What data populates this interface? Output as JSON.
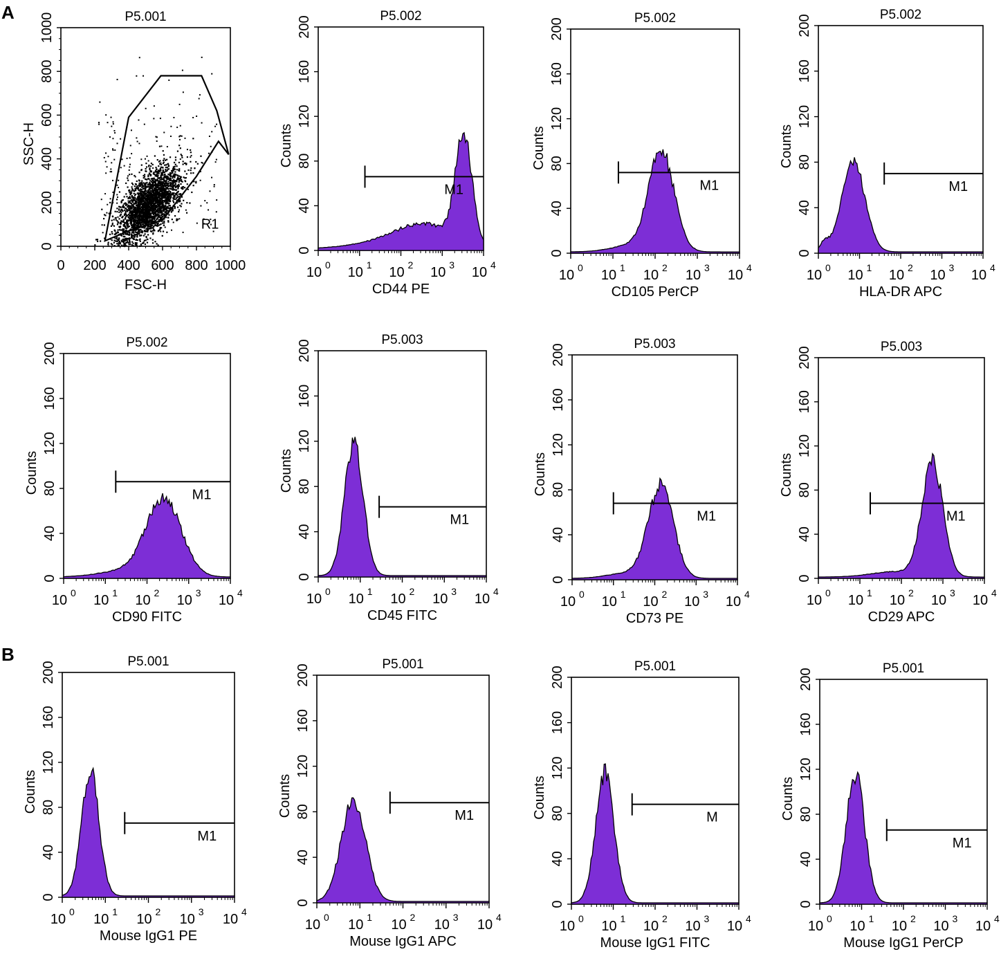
{
  "figure": {
    "panel_labels": [
      "A",
      "B"
    ],
    "hist_fill_color": "#7d2ed6",
    "hist_edge_color": "#000000"
  },
  "chart_data": [
    {
      "id": "scatter",
      "type": "scatter",
      "panel": "A",
      "title": "P5.001",
      "xlabel": "FSC-H",
      "ylabel": "SSC-H",
      "xlim": [
        0,
        1000
      ],
      "ylim": [
        0,
        1000
      ],
      "xticks": [
        "0",
        "200",
        "400",
        "600",
        "800",
        "1000"
      ],
      "yticks": [
        "0",
        "200",
        "400",
        "600",
        "800",
        "1000"
      ],
      "gate": {
        "name": "R1",
        "polygon": [
          [
            260,
            25
          ],
          [
            400,
            70
          ],
          [
            600,
            120
          ],
          [
            800,
            320
          ],
          [
            930,
            480
          ],
          [
            990,
            420
          ],
          [
            920,
            620
          ],
          [
            830,
            780
          ],
          [
            590,
            780
          ],
          [
            400,
            590
          ]
        ]
      },
      "cloud": {
        "center": [
          520,
          190
        ],
        "sd": [
          95,
          70
        ],
        "n_dense": 2600,
        "n_sparse": 200,
        "x_min": 200
      }
    },
    {
      "id": "cd44",
      "type": "histogram",
      "panel": "A",
      "title": "P5.002",
      "xlabel": "CD44 PE",
      "ylabel": "Counts",
      "xlim_log": [
        0,
        4
      ],
      "ylim": [
        0,
        200
      ],
      "yticks": [
        "0",
        "40",
        "80",
        "120",
        "160",
        "200"
      ],
      "xticks": [
        "0",
        "1",
        "2",
        "3",
        "4"
      ],
      "marker": {
        "label": "M1",
        "from_log": 1.13,
        "to_log": 4.0,
        "y": 66
      },
      "peaks": [
        {
          "mu": 3.52,
          "sigma": 0.2,
          "amp": 96
        },
        {
          "mu": 2.6,
          "sigma": 0.7,
          "amp": 20
        },
        {
          "mu": 1.6,
          "sigma": 0.9,
          "amp": 5
        }
      ]
    },
    {
      "id": "cd105",
      "type": "histogram",
      "panel": "A",
      "title": "P5.002",
      "xlabel": "CD105 PerCP",
      "ylabel": "Counts",
      "xlim_log": [
        0,
        4
      ],
      "ylim": [
        0,
        200
      ],
      "yticks": [
        "0",
        "40",
        "80",
        "120",
        "160",
        "200"
      ],
      "xticks": [
        "0",
        "1",
        "2",
        "3",
        "4"
      ],
      "marker": {
        "label": "M1",
        "from_log": 1.13,
        "to_log": 4.0,
        "y": 72
      },
      "peaks": [
        {
          "mu": 2.15,
          "sigma": 0.3,
          "amp": 88
        },
        {
          "mu": 1.5,
          "sigma": 0.5,
          "amp": 6
        }
      ]
    },
    {
      "id": "hladr",
      "type": "histogram",
      "panel": "A",
      "title": "P5.002",
      "xlabel": "HLA-DR APC",
      "ylabel": "Counts",
      "xlim_log": [
        0,
        4
      ],
      "ylim": [
        0,
        200
      ],
      "yticks": [
        "0",
        "40",
        "80",
        "120",
        "160",
        "200"
      ],
      "xticks": [
        "0",
        "1",
        "2",
        "3",
        "4"
      ],
      "marker": {
        "label": "M1",
        "from_log": 1.6,
        "to_log": 4.0,
        "y": 70
      },
      "peaks": [
        {
          "mu": 0.85,
          "sigma": 0.28,
          "amp": 80
        },
        {
          "mu": 0.15,
          "sigma": 0.1,
          "amp": 8
        }
      ]
    },
    {
      "id": "cd90",
      "type": "histogram",
      "panel": "A",
      "title": "P5.002",
      "xlabel": "CD90 FITC",
      "ylabel": "Counts",
      "xlim_log": [
        0,
        4
      ],
      "ylim": [
        0,
        200
      ],
      "yticks": [
        "0",
        "40",
        "80",
        "120",
        "160",
        "200"
      ],
      "xticks": [
        "0",
        "1",
        "2",
        "3",
        "4"
      ],
      "marker": {
        "label": "M1",
        "from_log": 1.25,
        "to_log": 4.0,
        "y": 86
      },
      "peaks": [
        {
          "mu": 2.4,
          "sigma": 0.42,
          "amp": 70
        },
        {
          "mu": 1.4,
          "sigma": 0.6,
          "amp": 5
        }
      ]
    },
    {
      "id": "cd45",
      "type": "histogram",
      "panel": "A",
      "title": "P5.003",
      "xlabel": "CD45 FITC",
      "ylabel": "Counts",
      "xlim_log": [
        0,
        4
      ],
      "ylim": [
        0,
        200
      ],
      "yticks": [
        "0",
        "40",
        "80",
        "120",
        "160",
        "200"
      ],
      "xticks": [
        "0",
        "1",
        "2",
        "3",
        "4"
      ],
      "marker": {
        "label": "M1",
        "from_log": 1.45,
        "to_log": 4.0,
        "y": 62
      },
      "peaks": [
        {
          "mu": 0.85,
          "sigma": 0.22,
          "amp": 120
        }
      ]
    },
    {
      "id": "cd73",
      "type": "histogram",
      "panel": "A",
      "title": "P5.003",
      "xlabel": "CD73 PE",
      "ylabel": "Counts",
      "xlim_log": [
        0,
        4
      ],
      "ylim": [
        0,
        200
      ],
      "yticks": [
        "0",
        "40",
        "80",
        "120",
        "160",
        "200"
      ],
      "xticks": [
        "0",
        "1",
        "2",
        "3",
        "4"
      ],
      "marker": {
        "label": "M1",
        "from_log": 1.0,
        "to_log": 4.0,
        "y": 68
      },
      "peaks": [
        {
          "mu": 2.15,
          "sigma": 0.3,
          "amp": 82
        },
        {
          "mu": 1.4,
          "sigma": 0.5,
          "amp": 5
        }
      ]
    },
    {
      "id": "cd29",
      "type": "histogram",
      "panel": "A",
      "title": "P5.003",
      "xlabel": "CD29 APC",
      "ylabel": "Counts",
      "xlim_log": [
        0,
        4
      ],
      "ylim": [
        0,
        200
      ],
      "yticks": [
        "0",
        "40",
        "80",
        "120",
        "160",
        "200"
      ],
      "xticks": [
        "0",
        "1",
        "2",
        "3",
        "4"
      ],
      "marker": {
        "label": "M1",
        "from_log": 1.25,
        "to_log": 4.0,
        "y": 68
      },
      "peaks": [
        {
          "mu": 2.75,
          "sigma": 0.25,
          "amp": 104
        },
        {
          "mu": 1.9,
          "sigma": 0.6,
          "amp": 5
        }
      ]
    },
    {
      "id": "iso_pe",
      "type": "histogram",
      "panel": "B",
      "title": "P5.001",
      "xlabel": "Mouse IgG1 PE",
      "ylabel": "Counts",
      "xlim_log": [
        0,
        4
      ],
      "ylim": [
        0,
        200
      ],
      "yticks": [
        "0",
        "40",
        "80",
        "120",
        "160",
        "200"
      ],
      "xticks": [
        "0",
        "1",
        "2",
        "3",
        "4"
      ],
      "marker": {
        "label": "M1",
        "from_log": 1.45,
        "to_log": 4.0,
        "y": 66
      },
      "peaks": [
        {
          "mu": 0.65,
          "sigma": 0.2,
          "amp": 112
        }
      ]
    },
    {
      "id": "iso_apc",
      "type": "histogram",
      "panel": "B",
      "title": "P5.001",
      "xlabel": "Mouse IgG1 APC",
      "ylabel": "Counts",
      "xlim_log": [
        0,
        4
      ],
      "ylim": [
        0,
        200
      ],
      "yticks": [
        "0",
        "40",
        "80",
        "120",
        "160",
        "200"
      ],
      "xticks": [
        "0",
        "1",
        "2",
        "3",
        "4"
      ],
      "marker": {
        "label": "M1",
        "from_log": 1.7,
        "to_log": 4.0,
        "y": 88
      },
      "peaks": [
        {
          "mu": 0.85,
          "sigma": 0.28,
          "amp": 90
        }
      ]
    },
    {
      "id": "iso_fitc",
      "type": "histogram",
      "panel": "B",
      "title": "P5.001",
      "xlabel": "Mouse IgG1 FITC",
      "ylabel": "Counts",
      "xlim_log": [
        0,
        4
      ],
      "ylim": [
        0,
        200
      ],
      "yticks": [
        "0",
        "40",
        "80",
        "120",
        "160",
        "200"
      ],
      "xticks": [
        "0",
        "1",
        "2",
        "3",
        "4"
      ],
      "marker": {
        "label": "M",
        "from_log": 1.45,
        "to_log": 4.0,
        "y": 88
      },
      "peaks": [
        {
          "mu": 0.8,
          "sigma": 0.22,
          "amp": 114
        }
      ]
    },
    {
      "id": "iso_percp",
      "type": "histogram",
      "panel": "B",
      "title": "P5.001",
      "xlabel": "Mouse IgG1 PerCP",
      "ylabel": "Counts",
      "xlim_log": [
        0,
        4
      ],
      "ylim": [
        0,
        200
      ],
      "yticks": [
        "0",
        "40",
        "80",
        "120",
        "160",
        "200"
      ],
      "xticks": [
        "0",
        "1",
        "2",
        "3",
        "4"
      ],
      "marker": {
        "label": "M1",
        "from_log": 1.6,
        "to_log": 4.0,
        "y": 66
      },
      "peaks": [
        {
          "mu": 0.85,
          "sigma": 0.22,
          "amp": 115
        }
      ]
    }
  ]
}
